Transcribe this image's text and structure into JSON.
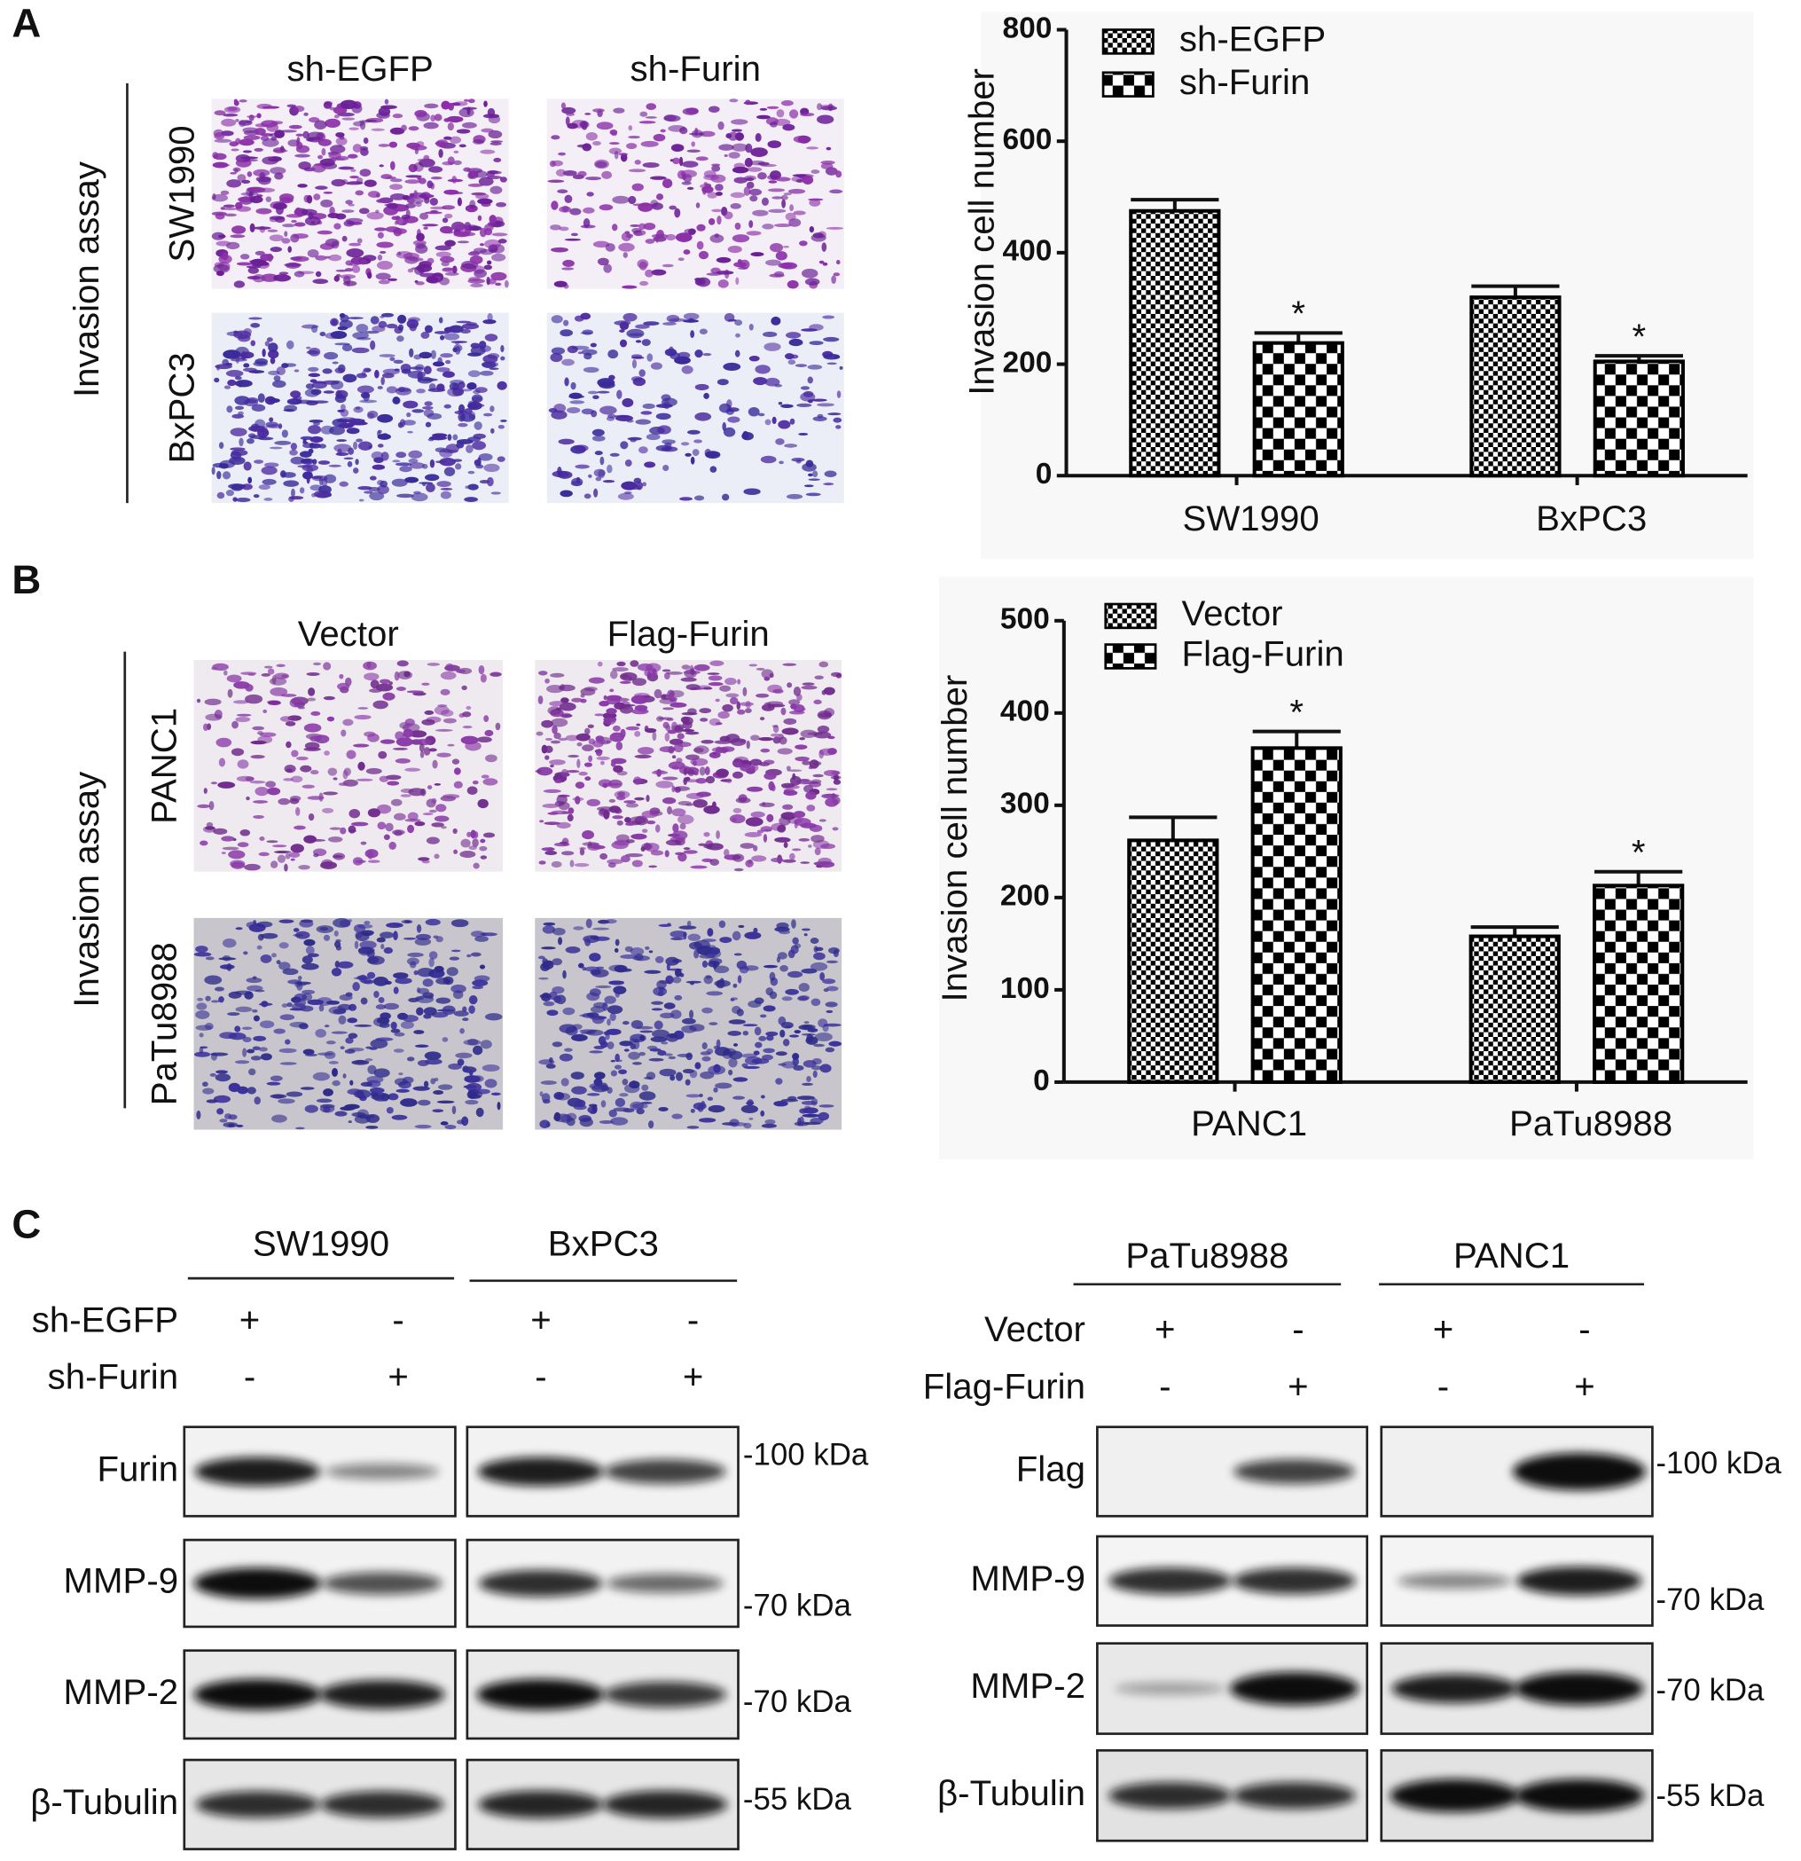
{
  "panels": {
    "a": "A",
    "b": "B",
    "c": "C"
  },
  "images": [
    {
      "side_label": "Invasion assay",
      "columns": [
        "sh-EGFP",
        "sh-Furin"
      ],
      "rows": [
        "SW1990",
        "BxPC3"
      ]
    },
    {
      "side_label": "Invasion assay",
      "columns": [
        "Vector",
        "Flag-Furin"
      ],
      "rows": [
        "PANC1",
        "PaTu8988"
      ]
    }
  ],
  "chart_data": [
    {
      "type": "bar",
      "y_label": "Invasion cell number",
      "categories": [
        "SW1990",
        "BxPC3"
      ],
      "series": [
        {
          "name": "sh-EGFP",
          "color": "#000000",
          "pattern": "fine",
          "values": [
            475,
            320
          ],
          "errors": [
            20,
            20
          ]
        },
        {
          "name": "sh-Furin",
          "color": "#000000",
          "pattern": "coarse",
          "values": [
            238,
            205
          ],
          "errors": [
            18,
            10
          ],
          "annotations": [
            "*",
            "*"
          ]
        }
      ],
      "ylim": [
        0,
        800
      ],
      "yticks": [
        0,
        200,
        400,
        600,
        800
      ],
      "legend": "upper left"
    },
    {
      "type": "bar",
      "y_label": "Invasion cell number",
      "categories": [
        "PANC1",
        "PaTu8988"
      ],
      "series": [
        {
          "name": "Vector",
          "color": "#000000",
          "pattern": "fine",
          "values": [
            262,
            158
          ],
          "errors": [
            25,
            10
          ]
        },
        {
          "name": "Flag-Furin",
          "color": "#000000",
          "pattern": "coarse",
          "values": [
            362,
            213
          ],
          "errors": [
            18,
            15
          ],
          "annotations": [
            "*",
            "*"
          ]
        }
      ],
      "ylim": [
        0,
        500
      ],
      "yticks": [
        0,
        100,
        200,
        300,
        400,
        500
      ],
      "legend": "upper left"
    }
  ],
  "blots": [
    {
      "groups": [
        "SW1990",
        "BxPC3"
      ],
      "conditions": [
        {
          "label": "sh-EGFP",
          "marks": [
            "+",
            "-",
            "+",
            "-"
          ]
        },
        {
          "label": "sh-Furin",
          "marks": [
            "-",
            "+",
            "-",
            "+"
          ]
        }
      ],
      "rows": [
        {
          "label": "Furin",
          "size": "-100 kDa"
        },
        {
          "label": "MMP-9",
          "size": "-70 kDa"
        },
        {
          "label": "MMP-2",
          "size": "-70 kDa"
        },
        {
          "label": "β-Tubulin",
          "size": "-55 kDa"
        }
      ]
    },
    {
      "groups": [
        "PaTu8988",
        "PANC1"
      ],
      "conditions": [
        {
          "label": "Vector",
          "marks": [
            "+",
            "-",
            "+",
            "-"
          ]
        },
        {
          "label": "Flag-Furin",
          "marks": [
            "-",
            "+",
            "-",
            "+"
          ]
        }
      ],
      "rows": [
        {
          "label": "Flag",
          "size": "-100 kDa"
        },
        {
          "label": "MMP-9",
          "size": "-70 kDa"
        },
        {
          "label": "MMP-2",
          "size": "-70 kDa"
        },
        {
          "label": "β-Tubulin",
          "size": "-55 kDa"
        }
      ]
    }
  ]
}
